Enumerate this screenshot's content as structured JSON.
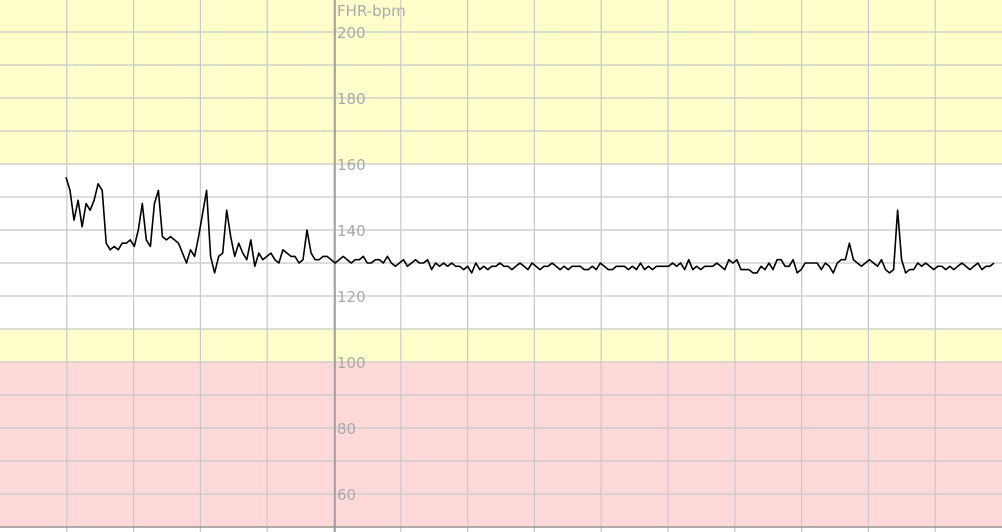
{
  "chart_data": {
    "type": "line",
    "title": "",
    "ylabel": "FHR-bpm",
    "xlabel": "",
    "ylim": [
      50,
      210
    ],
    "yticks": [
      200,
      180,
      160,
      140,
      120,
      100,
      80,
      60
    ],
    "grid": true,
    "bands": [
      {
        "from": 160,
        "to": 210,
        "color": "#ffffcc"
      },
      {
        "from": 100,
        "to": 110,
        "color": "#ffffcc"
      },
      {
        "from": 110,
        "to": 160,
        "color": "#ffffff"
      },
      {
        "from": 50,
        "to": 100,
        "color": "#ffd9d9"
      }
    ],
    "colors": {
      "line": "#000000",
      "grid": "#c8c8c8",
      "axis": "#969696",
      "tick_label": "#a9a9a9"
    },
    "series": [
      {
        "values": [
          156,
          152,
          143,
          149,
          141,
          148,
          146,
          149,
          154,
          152,
          136,
          134,
          135,
          134,
          136,
          136,
          137,
          135,
          140,
          148,
          137,
          135,
          148,
          152,
          138,
          137,
          138,
          137,
          136,
          133,
          130,
          134,
          132,
          138,
          145,
          152,
          132,
          127,
          132,
          133,
          146,
          138,
          132,
          136,
          133,
          131,
          137,
          129,
          133,
          131,
          132,
          133,
          131,
          130,
          134,
          133,
          132,
          132,
          130,
          131,
          140,
          133,
          131,
          131,
          132,
          132,
          131,
          130,
          131,
          132,
          131,
          130,
          131,
          131,
          132,
          130,
          130,
          131,
          131,
          130,
          132,
          130,
          129,
          130,
          131,
          129,
          130,
          131,
          130,
          130,
          131,
          128,
          130,
          129,
          130,
          129,
          130,
          129,
          129,
          128,
          129,
          127,
          130,
          128,
          129,
          128,
          129,
          129,
          130,
          129,
          129,
          128,
          129,
          130,
          129,
          128,
          130,
          129,
          128,
          129,
          129,
          130,
          129,
          128,
          129,
          128,
          129,
          129,
          129,
          128,
          128,
          129,
          128,
          130,
          129,
          128,
          128,
          129,
          129,
          129,
          128,
          129,
          128,
          130,
          128,
          129,
          128,
          129,
          129,
          129,
          129,
          130,
          129,
          130,
          128,
          131,
          128,
          129,
          128,
          129,
          129,
          129,
          130,
          129,
          128,
          131,
          130,
          131,
          128,
          128,
          128,
          127,
          127,
          129,
          128,
          130,
          128,
          131,
          131,
          129,
          129,
          131,
          127,
          128,
          130,
          130,
          130,
          130,
          128,
          130,
          129,
          127,
          130,
          131,
          131,
          136,
          131,
          130,
          129,
          130,
          131,
          130,
          129,
          131,
          128,
          127,
          128,
          146,
          131,
          127,
          128,
          128,
          130,
          129,
          130,
          129,
          128,
          129,
          129,
          128,
          129,
          128,
          129,
          130,
          129,
          128,
          129,
          130,
          128,
          129,
          129,
          130
        ]
      }
    ]
  }
}
